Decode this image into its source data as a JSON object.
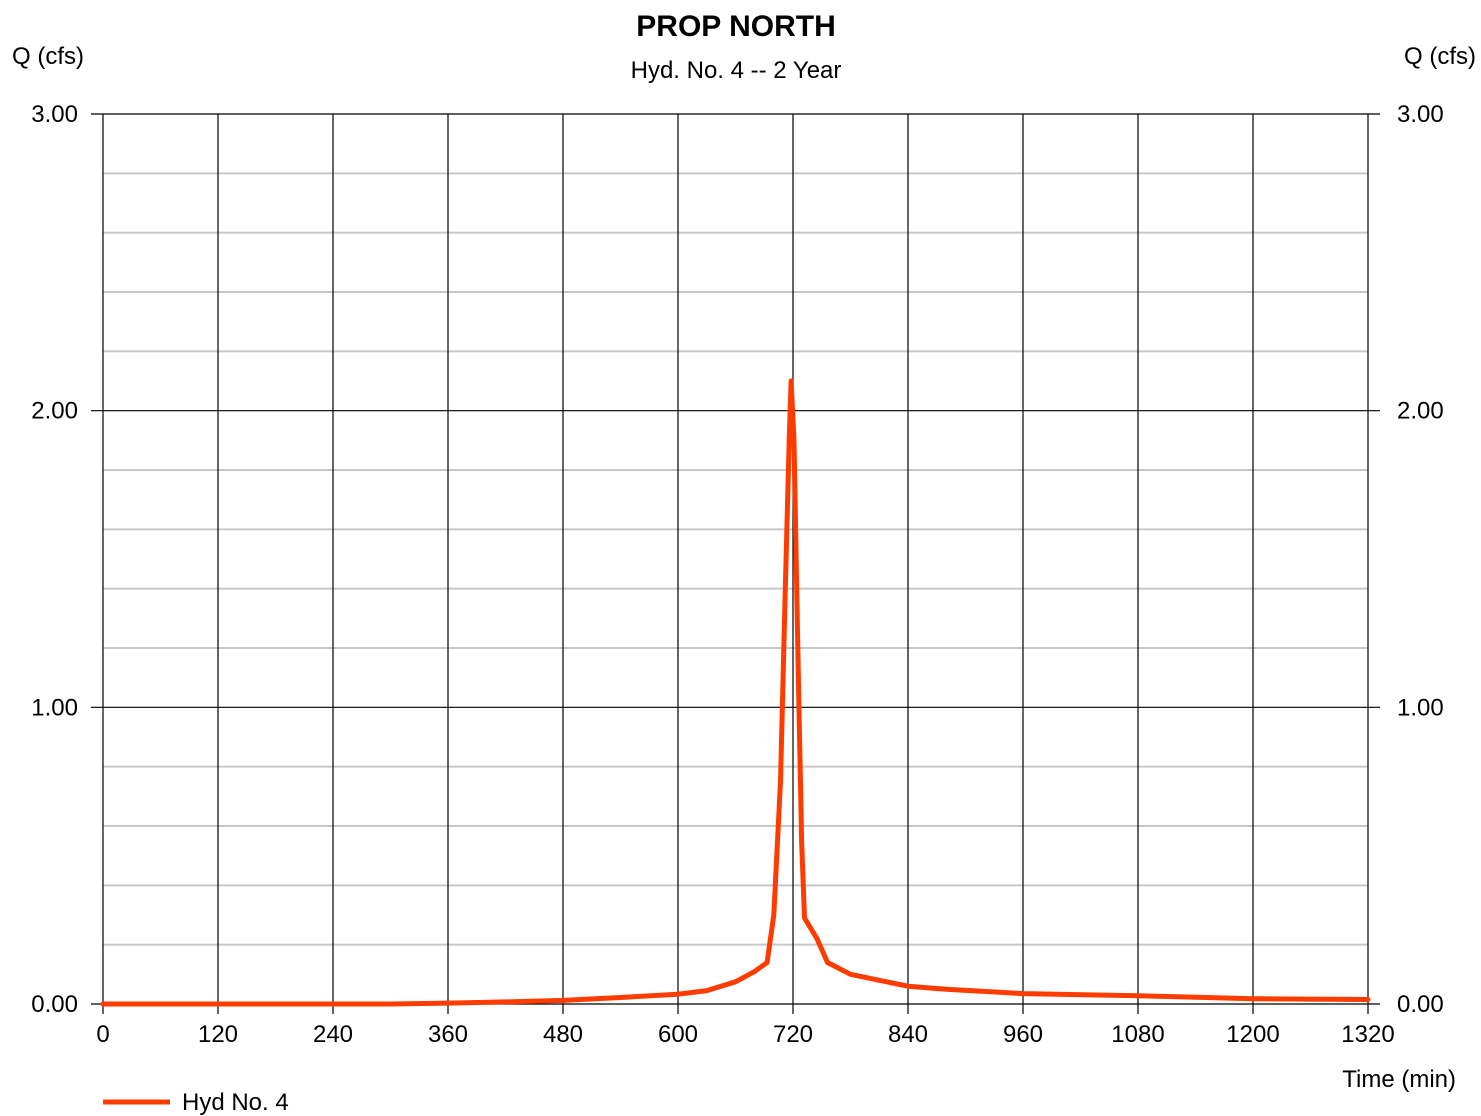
{
  "chart_data": {
    "type": "line",
    "title": "PROP NORTH",
    "subtitle": "Hyd. No. 4 -- 2 Year",
    "ylabel_left": "Q (cfs)",
    "ylabel_right": "Q (cfs)",
    "xlabel": "Time (min)",
    "xlim": [
      0,
      1320
    ],
    "ylim": [
      0,
      3
    ],
    "x_ticks": [
      0,
      120,
      240,
      360,
      480,
      600,
      720,
      840,
      960,
      1080,
      1200,
      1320
    ],
    "x_tick_labels": [
      "0",
      "120",
      "240",
      "360",
      "480",
      "600",
      "720",
      "840",
      "960",
      "1080",
      "1200",
      "1320"
    ],
    "y_major_ticks": [
      0,
      1,
      2,
      3
    ],
    "y_tick_labels": [
      "0.00",
      "1.00",
      "2.00",
      "3.00"
    ],
    "y_minor_step": 0.2,
    "grid": true,
    "legend_position": "bottom-left",
    "series": [
      {
        "name": "Hyd No. 4",
        "color": "#ff3c00",
        "points": [
          [
            0,
            0.0
          ],
          [
            120,
            0.0
          ],
          [
            240,
            0.0
          ],
          [
            300,
            0.0
          ],
          [
            360,
            0.003
          ],
          [
            420,
            0.007
          ],
          [
            480,
            0.012
          ],
          [
            540,
            0.022
          ],
          [
            600,
            0.033
          ],
          [
            630,
            0.045
          ],
          [
            660,
            0.075
          ],
          [
            680,
            0.11
          ],
          [
            693,
            0.14
          ],
          [
            700,
            0.3
          ],
          [
            707,
            0.75
          ],
          [
            712,
            1.4
          ],
          [
            716,
            1.9
          ],
          [
            718,
            2.1
          ],
          [
            721,
            1.9
          ],
          [
            725,
            1.2
          ],
          [
            729,
            0.55
          ],
          [
            732,
            0.29
          ],
          [
            745,
            0.22
          ],
          [
            756,
            0.14
          ],
          [
            780,
            0.1
          ],
          [
            810,
            0.08
          ],
          [
            840,
            0.06
          ],
          [
            880,
            0.05
          ],
          [
            960,
            0.035
          ],
          [
            1080,
            0.028
          ],
          [
            1200,
            0.018
          ],
          [
            1320,
            0.015
          ]
        ]
      }
    ]
  }
}
